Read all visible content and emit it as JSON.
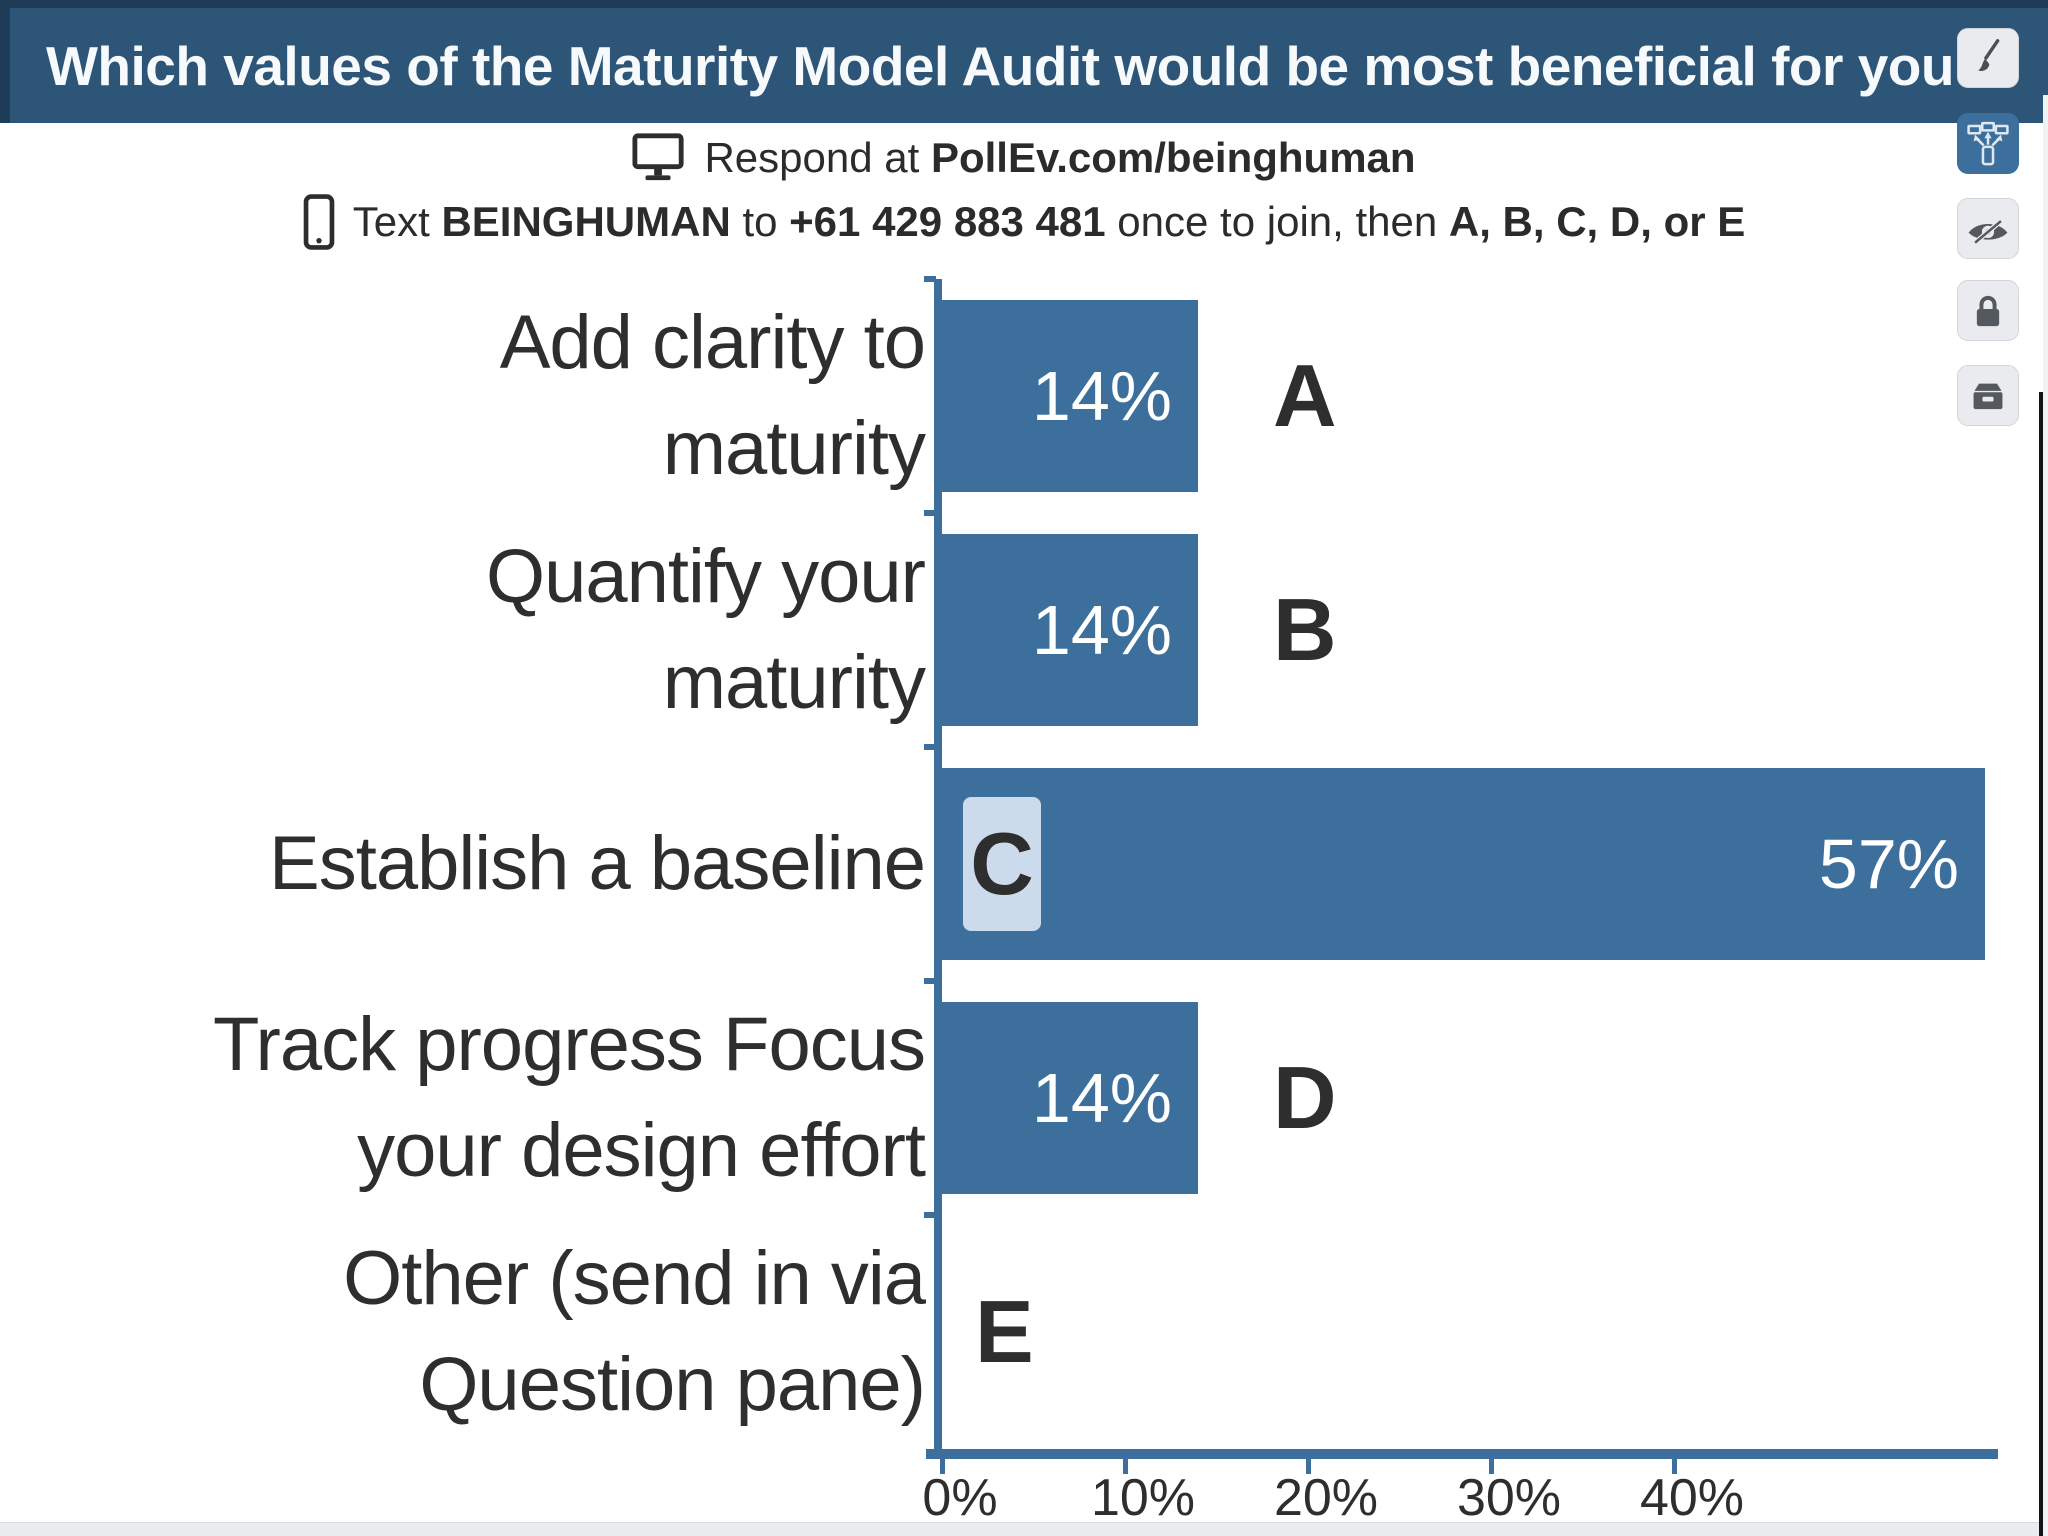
{
  "header": {
    "title": "Which values of the Maturity Model Audit would be most beneficial for you",
    "bg_color": "#2d5577"
  },
  "instructions": {
    "line1": {
      "prefix": "Respond at ",
      "url": "PollEv.com/beinghuman"
    },
    "line2": {
      "t1": "Text ",
      "keyword": "BEINGHUMAN",
      "t2": " to ",
      "number": "+61 429 883 481",
      "t3": " once to join, then ",
      "options": "A, B, C, D, or E"
    }
  },
  "toolbar": {
    "buttons": [
      {
        "name": "edit",
        "icon": "paintbrush-icon",
        "active": false
      },
      {
        "name": "show-response-instructions",
        "icon": "cast-devices-icon",
        "active": true
      },
      {
        "name": "hide-results",
        "icon": "eye-slash-icon",
        "active": false
      },
      {
        "name": "lock-poll",
        "icon": "lock-icon",
        "active": false
      },
      {
        "name": "archive-poll",
        "icon": "archive-box-icon",
        "active": false
      }
    ]
  },
  "chart_data": {
    "type": "bar",
    "orientation": "horizontal",
    "title": "Which values of the Maturity Model Audit would be most beneficial for you",
    "categories": [
      "Add clarity to maturity",
      "Quantify your maturity",
      "Establish a baseline",
      "Track progress Focus your design effort",
      "Other (send in via Question pane)"
    ],
    "label_lines": [
      [
        "Add clarity to",
        "maturity"
      ],
      [
        "Quantify your",
        "maturity"
      ],
      [
        "Establish a baseline"
      ],
      [
        "Track progress Focus",
        "your design effort"
      ],
      [
        "Other (send in via",
        "Question pane)"
      ]
    ],
    "letters": [
      "A",
      "B",
      "C",
      "D",
      "E"
    ],
    "values": [
      14,
      14,
      57,
      14,
      0
    ],
    "value_labels": [
      "14%",
      "14%",
      "57%",
      "14%",
      ""
    ],
    "xticks": [
      "0%",
      "10%",
      "20%",
      "30%",
      "40%"
    ],
    "xtick_values": [
      0,
      10,
      20,
      30,
      40
    ],
    "xlim": [
      0,
      58
    ],
    "grid": false,
    "legend": false,
    "bar_color": "#3d6f9c",
    "highlight_chip_color": "#cbdbeb"
  },
  "colors": {
    "header_bg": "#2d5577",
    "bar": "#3d6f9c",
    "active_button": "#3d6f9c",
    "footer_strip": "#eaedf0"
  }
}
